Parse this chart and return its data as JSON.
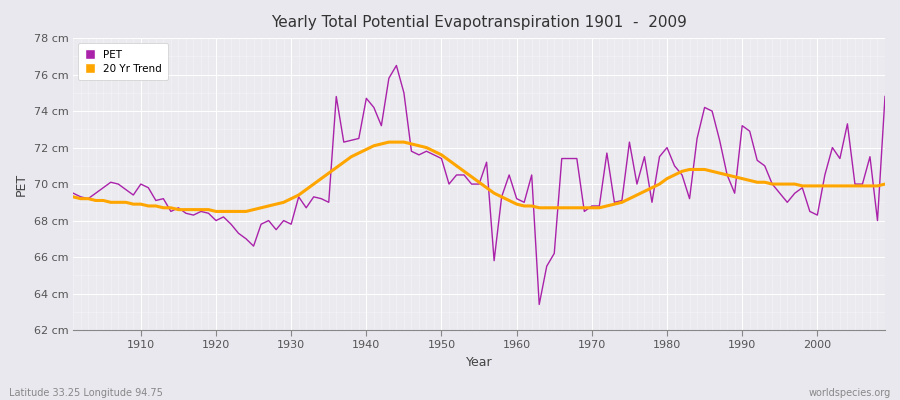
{
  "title": "Yearly Total Potential Evapotranspiration 1901  -  2009",
  "xlabel": "Year",
  "ylabel": "PET",
  "xlim": [
    1901,
    2009
  ],
  "ylim": [
    62,
    78
  ],
  "yticks": [
    62,
    64,
    66,
    68,
    70,
    72,
    74,
    76,
    78
  ],
  "xticks": [
    1910,
    1920,
    1930,
    1940,
    1950,
    1960,
    1970,
    1980,
    1990,
    2000
  ],
  "pet_color": "#AA22AA",
  "trend_color": "#FFA500",
  "bg_color": "#E8E8EC",
  "plot_bg": "#EBEBF0",
  "grid_color": "#FFFFFF",
  "footer_left": "Latitude 33.25 Longitude 94.75",
  "footer_right": "worldspecies.org",
  "pet_label": "PET",
  "trend_label": "20 Yr Trend",
  "years": [
    1901,
    1902,
    1903,
    1904,
    1905,
    1906,
    1907,
    1908,
    1909,
    1910,
    1911,
    1912,
    1913,
    1914,
    1915,
    1916,
    1917,
    1918,
    1919,
    1920,
    1921,
    1922,
    1923,
    1924,
    1925,
    1926,
    1927,
    1928,
    1929,
    1930,
    1931,
    1932,
    1933,
    1934,
    1935,
    1936,
    1937,
    1938,
    1939,
    1940,
    1941,
    1942,
    1943,
    1944,
    1945,
    1946,
    1947,
    1948,
    1949,
    1950,
    1951,
    1952,
    1953,
    1954,
    1955,
    1956,
    1957,
    1958,
    1959,
    1960,
    1961,
    1962,
    1963,
    1964,
    1965,
    1966,
    1967,
    1968,
    1969,
    1970,
    1971,
    1972,
    1973,
    1974,
    1975,
    1976,
    1977,
    1978,
    1979,
    1980,
    1981,
    1982,
    1983,
    1984,
    1985,
    1986,
    1987,
    1988,
    1989,
    1990,
    1991,
    1992,
    1993,
    1994,
    1995,
    1996,
    1997,
    1998,
    1999,
    2000,
    2001,
    2002,
    2003,
    2004,
    2005,
    2006,
    2007,
    2008,
    2009
  ],
  "pet_values": [
    69.5,
    69.3,
    69.2,
    69.5,
    69.8,
    70.1,
    70.0,
    69.7,
    69.4,
    70.0,
    69.8,
    69.1,
    69.2,
    68.5,
    68.7,
    68.4,
    68.3,
    68.5,
    68.4,
    68.0,
    68.2,
    67.8,
    67.3,
    67.0,
    66.6,
    67.8,
    68.0,
    67.5,
    68.0,
    67.8,
    69.3,
    68.7,
    69.3,
    69.2,
    69.0,
    74.8,
    72.3,
    72.4,
    72.5,
    74.7,
    74.2,
    73.2,
    75.8,
    76.5,
    75.0,
    71.8,
    71.6,
    71.8,
    71.6,
    71.4,
    70.0,
    70.5,
    70.5,
    70.0,
    70.0,
    71.2,
    65.8,
    69.3,
    70.5,
    69.2,
    69.0,
    70.5,
    63.4,
    65.5,
    66.2,
    71.4,
    71.4,
    71.4,
    68.5,
    68.8,
    68.8,
    71.7,
    69.0,
    69.1,
    72.3,
    70.0,
    71.5,
    69.0,
    71.5,
    72.0,
    71.0,
    70.5,
    69.2,
    72.5,
    74.2,
    74.0,
    72.4,
    70.5,
    69.5,
    73.2,
    72.9,
    71.3,
    71.0,
    70.0,
    69.5,
    69.0,
    69.5,
    69.8,
    68.5,
    68.3,
    70.5,
    72.0,
    71.4,
    73.3,
    70.0,
    70.0,
    71.5,
    68.0,
    74.8
  ],
  "trend_years": [
    1901,
    1902,
    1903,
    1904,
    1905,
    1906,
    1907,
    1908,
    1909,
    1910,
    1911,
    1912,
    1913,
    1914,
    1915,
    1916,
    1917,
    1918,
    1919,
    1920,
    1921,
    1922,
    1923,
    1924,
    1925,
    1926,
    1927,
    1928,
    1929,
    1930,
    1931,
    1932,
    1933,
    1934,
    1935,
    1936,
    1937,
    1938,
    1939,
    1940,
    1941,
    1942,
    1943,
    1944,
    1945,
    1946,
    1947,
    1948,
    1949,
    1950,
    1951,
    1952,
    1953,
    1954,
    1955,
    1956,
    1957,
    1958,
    1959,
    1960,
    1961,
    1962,
    1963,
    1964,
    1965,
    1966,
    1967,
    1968,
    1969,
    1970,
    1971,
    1972,
    1973,
    1974,
    1975,
    1976,
    1977,
    1978,
    1979,
    1980,
    1981,
    1982,
    1983,
    1984,
    1985,
    1986,
    1987,
    1988,
    1989,
    1990,
    1991,
    1992,
    1993,
    1994,
    1995,
    1996,
    1997,
    1998,
    1999,
    2000,
    2001,
    2002,
    2003,
    2004,
    2005,
    2006,
    2007,
    2008,
    2009
  ],
  "trend_values": [
    69.3,
    69.2,
    69.2,
    69.1,
    69.1,
    69.0,
    69.0,
    69.0,
    68.9,
    68.9,
    68.8,
    68.8,
    68.7,
    68.7,
    68.6,
    68.6,
    68.6,
    68.6,
    68.6,
    68.5,
    68.5,
    68.5,
    68.5,
    68.5,
    68.6,
    68.7,
    68.8,
    68.9,
    69.0,
    69.2,
    69.4,
    69.7,
    70.0,
    70.3,
    70.6,
    70.9,
    71.2,
    71.5,
    71.7,
    71.9,
    72.1,
    72.2,
    72.3,
    72.3,
    72.3,
    72.2,
    72.1,
    72.0,
    71.8,
    71.6,
    71.3,
    71.0,
    70.7,
    70.4,
    70.1,
    69.8,
    69.5,
    69.3,
    69.1,
    68.9,
    68.8,
    68.8,
    68.7,
    68.7,
    68.7,
    68.7,
    68.7,
    68.7,
    68.7,
    68.7,
    68.7,
    68.8,
    68.9,
    69.0,
    69.2,
    69.4,
    69.6,
    69.8,
    70.0,
    70.3,
    70.5,
    70.7,
    70.8,
    70.8,
    70.8,
    70.7,
    70.6,
    70.5,
    70.4,
    70.3,
    70.2,
    70.1,
    70.1,
    70.0,
    70.0,
    70.0,
    70.0,
    69.9,
    69.9,
    69.9,
    69.9,
    69.9,
    69.9,
    69.9,
    69.9,
    69.9,
    69.9,
    69.9,
    70.0
  ]
}
